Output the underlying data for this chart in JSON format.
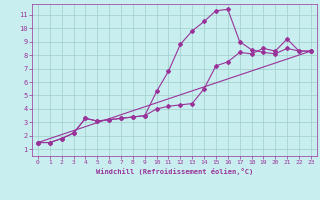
{
  "xlabel": "Windchill (Refroidissement éolien,°C)",
  "bg_color": "#c8eef0",
  "grid_color": "#a0cfc8",
  "line_color": "#993399",
  "xlim": [
    -0.5,
    23.5
  ],
  "ylim": [
    0.5,
    11.8
  ],
  "xticks": [
    0,
    1,
    2,
    3,
    4,
    5,
    6,
    7,
    8,
    9,
    10,
    11,
    12,
    13,
    14,
    15,
    16,
    17,
    18,
    19,
    20,
    21,
    22,
    23
  ],
  "yticks": [
    1,
    2,
    3,
    4,
    5,
    6,
    7,
    8,
    9,
    10,
    11
  ],
  "curve1_x": [
    0,
    1,
    2,
    3,
    4,
    5,
    6,
    7,
    8,
    9,
    10,
    11,
    12,
    13,
    14,
    15,
    16,
    17,
    18,
    19,
    20,
    21,
    22,
    23
  ],
  "curve1_y": [
    1.5,
    1.5,
    1.8,
    2.2,
    3.3,
    3.1,
    3.2,
    3.3,
    3.4,
    3.5,
    4.0,
    4.2,
    4.3,
    4.4,
    5.5,
    7.2,
    7.5,
    8.2,
    8.1,
    8.5,
    8.3,
    9.2,
    8.3,
    8.3
  ],
  "curve2_x": [
    0,
    1,
    2,
    3,
    4,
    5,
    6,
    7,
    8,
    9,
    10,
    11,
    12,
    13,
    14,
    15,
    16,
    17,
    18,
    19,
    20,
    21,
    22,
    23
  ],
  "curve2_y": [
    1.5,
    1.5,
    1.8,
    2.2,
    3.3,
    3.1,
    3.2,
    3.3,
    3.4,
    3.5,
    5.3,
    6.8,
    8.8,
    9.8,
    10.5,
    11.3,
    11.4,
    9.0,
    8.4,
    8.2,
    8.1,
    8.5,
    8.3,
    8.3
  ],
  "line_x": [
    0,
    23
  ],
  "line_y": [
    1.5,
    8.3
  ]
}
